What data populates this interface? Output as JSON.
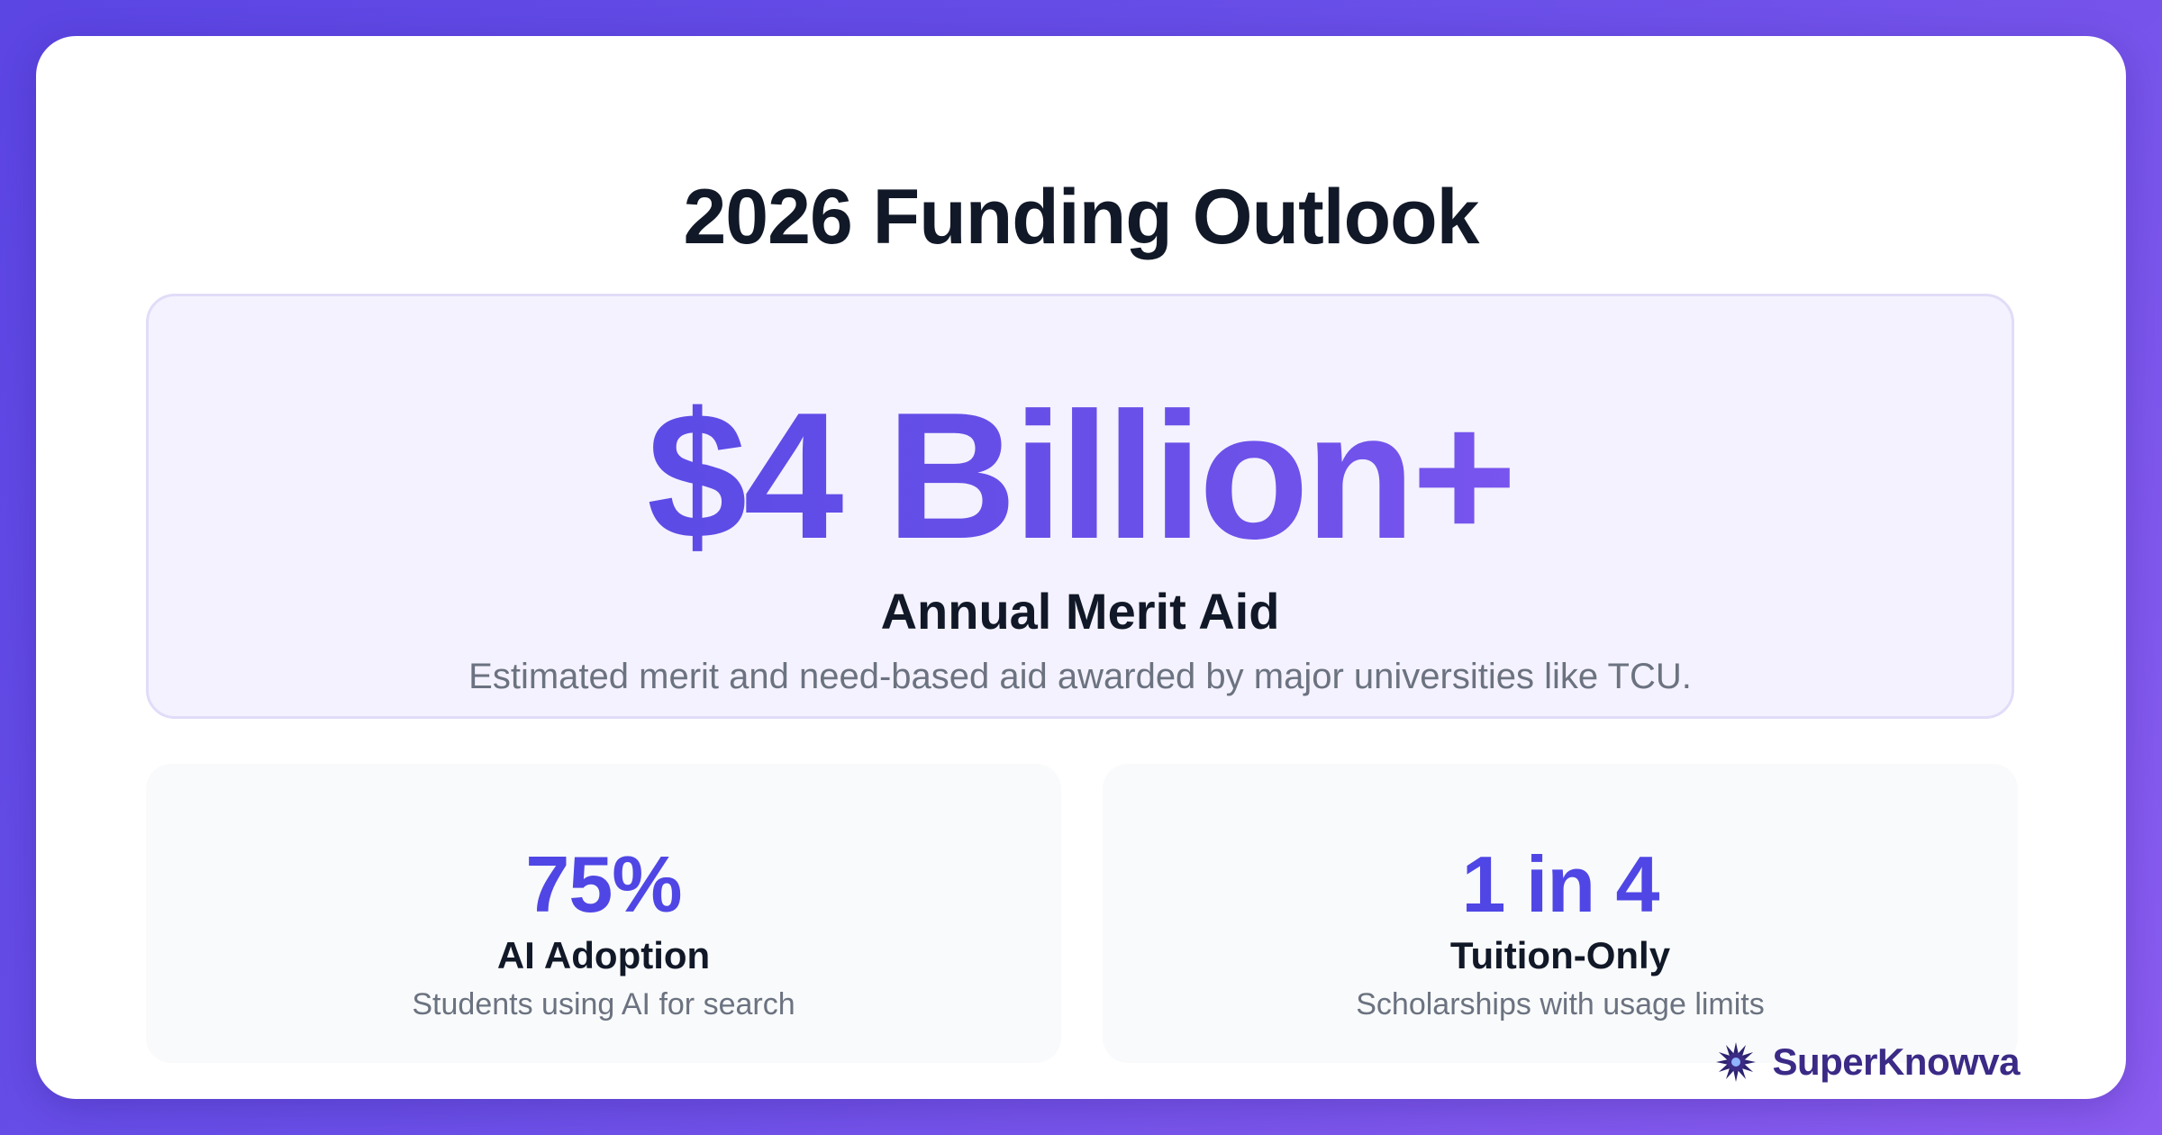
{
  "title": "2026 Funding Outlook",
  "hero": {
    "value": "$4 Billion+",
    "label": "Annual Merit Aid",
    "description": "Estimated merit and need-based aid awarded by major universities like TCU."
  },
  "stats": [
    {
      "value": "75%",
      "label": "AI Adoption",
      "description": "Students using AI for search"
    },
    {
      "value": "1 in 4",
      "label": "Tuition-Only",
      "description": "Scholarships with usage limits"
    }
  ],
  "brand": {
    "name": "SuperKnowva",
    "icon": "starburst-logo-icon"
  },
  "colors": {
    "accent": "#4f46e5",
    "accent_end": "#8b5cf6",
    "background_gradient_start": "#5b45e3",
    "background_gradient_end": "#8b5cf0",
    "heading": "#111827",
    "muted": "#6b7280"
  }
}
